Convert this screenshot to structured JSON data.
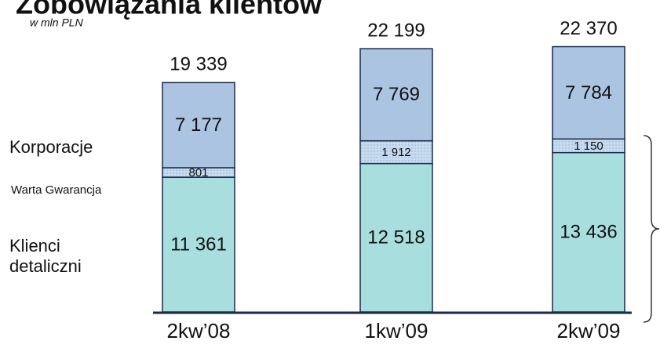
{
  "chart_data": {
    "type": "stacked_bar",
    "title": "Zobowiązania klientów",
    "subtitle": "w mln PLN",
    "categories": [
      "2kw’08",
      "1kw’09",
      "2kw’09"
    ],
    "series": [
      {
        "name": "Klienci detaliczni",
        "color": "#a9dede",
        "values": [
          11361,
          12518,
          13436
        ],
        "value_labels": [
          "11 361",
          "12 518",
          "13 436"
        ]
      },
      {
        "name": "Warta Gwarancja",
        "color": "#c9dcef",
        "values": [
          801,
          1912,
          1150
        ],
        "value_labels": [
          "801",
          "1 912",
          "1 150"
        ]
      },
      {
        "name": "Korporacje",
        "color": "#abc4e2",
        "values": [
          7177,
          7769,
          7784
        ],
        "value_labels": [
          "7 177",
          "7 769",
          "7 784"
        ]
      }
    ],
    "totals": [
      19339,
      22199,
      22370
    ],
    "total_labels": [
      "19 339",
      "22 199",
      "22 370"
    ],
    "ylim": [
      0,
      23000
    ]
  }
}
